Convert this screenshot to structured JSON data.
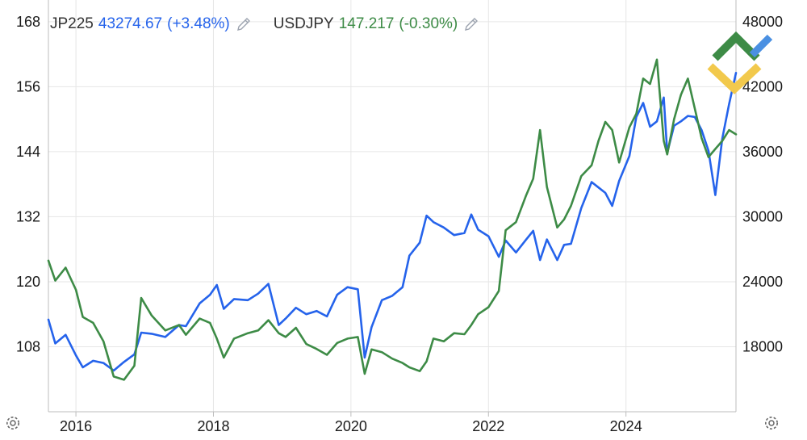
{
  "legend": [
    {
      "symbol": "JP225",
      "value": "43274.67",
      "change": "(+3.48%)",
      "color": "#2563eb",
      "icon": "pencil-icon"
    },
    {
      "symbol": "USDJPY",
      "value": "147.217",
      "change": "(-0.30%)",
      "color": "#3d8b46",
      "icon": "pencil-icon"
    }
  ],
  "icons": {
    "settings_left": "gear-icon",
    "settings_right": "gear-icon",
    "logo": "brand-logo"
  },
  "chart_data": {
    "type": "line",
    "x_ticks": [
      "2016",
      "2018",
      "2020",
      "2022",
      "2024"
    ],
    "y_left": {
      "ticks": [
        "108",
        "120",
        "132",
        "144",
        "156",
        "168"
      ],
      "range": [
        96,
        172
      ]
    },
    "y_right": {
      "ticks": [
        "18000",
        "24000",
        "30000",
        "36000",
        "42000",
        "48000"
      ],
      "range": [
        12000,
        50000
      ]
    },
    "x_range": [
      2015.6,
      2025.6
    ],
    "grid": true,
    "series": [
      {
        "name": "JP225",
        "axis": "right",
        "color": "#2563eb",
        "points": [
          [
            2015.6,
            20500
          ],
          [
            2015.7,
            18300
          ],
          [
            2015.85,
            19100
          ],
          [
            2016.0,
            17200
          ],
          [
            2016.1,
            16100
          ],
          [
            2016.25,
            16700
          ],
          [
            2016.4,
            16500
          ],
          [
            2016.55,
            15800
          ],
          [
            2016.7,
            16600
          ],
          [
            2016.85,
            17300
          ],
          [
            2016.95,
            19300
          ],
          [
            2017.1,
            19200
          ],
          [
            2017.3,
            18900
          ],
          [
            2017.5,
            20000
          ],
          [
            2017.6,
            19900
          ],
          [
            2017.8,
            22000
          ],
          [
            2017.95,
            22800
          ],
          [
            2018.05,
            23700
          ],
          [
            2018.15,
            21500
          ],
          [
            2018.3,
            22400
          ],
          [
            2018.5,
            22300
          ],
          [
            2018.65,
            22900
          ],
          [
            2018.8,
            23800
          ],
          [
            2018.95,
            20000
          ],
          [
            2019.05,
            20600
          ],
          [
            2019.2,
            21600
          ],
          [
            2019.35,
            21000
          ],
          [
            2019.5,
            21300
          ],
          [
            2019.65,
            20800
          ],
          [
            2019.8,
            22800
          ],
          [
            2019.95,
            23500
          ],
          [
            2020.1,
            23300
          ],
          [
            2020.2,
            17000
          ],
          [
            2020.3,
            19800
          ],
          [
            2020.45,
            22300
          ],
          [
            2020.6,
            22700
          ],
          [
            2020.75,
            23500
          ],
          [
            2020.85,
            26400
          ],
          [
            2021.0,
            27600
          ],
          [
            2021.1,
            30100
          ],
          [
            2021.2,
            29500
          ],
          [
            2021.35,
            29000
          ],
          [
            2021.5,
            28300
          ],
          [
            2021.65,
            28500
          ],
          [
            2021.75,
            30200
          ],
          [
            2021.85,
            28800
          ],
          [
            2022.0,
            28200
          ],
          [
            2022.15,
            26300
          ],
          [
            2022.25,
            27800
          ],
          [
            2022.4,
            26700
          ],
          [
            2022.55,
            27900
          ],
          [
            2022.65,
            28700
          ],
          [
            2022.75,
            26000
          ],
          [
            2022.85,
            27900
          ],
          [
            2023.0,
            26000
          ],
          [
            2023.1,
            27400
          ],
          [
            2023.2,
            27500
          ],
          [
            2023.35,
            30800
          ],
          [
            2023.5,
            33200
          ],
          [
            2023.6,
            32700
          ],
          [
            2023.7,
            32200
          ],
          [
            2023.8,
            31000
          ],
          [
            2023.9,
            33300
          ],
          [
            2024.05,
            35600
          ],
          [
            2024.15,
            39200
          ],
          [
            2024.25,
            40500
          ],
          [
            2024.35,
            38300
          ],
          [
            2024.45,
            38800
          ],
          [
            2024.55,
            41000
          ],
          [
            2024.6,
            35900
          ],
          [
            2024.7,
            38400
          ],
          [
            2024.8,
            38800
          ],
          [
            2024.9,
            39300
          ],
          [
            2025.0,
            39200
          ],
          [
            2025.1,
            38000
          ],
          [
            2025.2,
            36100
          ],
          [
            2025.3,
            32000
          ],
          [
            2025.4,
            37200
          ],
          [
            2025.5,
            40400
          ],
          [
            2025.6,
            43274
          ]
        ]
      },
      {
        "name": "USDJPY",
        "axis": "left",
        "color": "#3d8b46",
        "points": [
          [
            2015.6,
            123.9
          ],
          [
            2015.7,
            120.2
          ],
          [
            2015.85,
            122.6
          ],
          [
            2016.0,
            118.5
          ],
          [
            2016.1,
            113.5
          ],
          [
            2016.25,
            112.4
          ],
          [
            2016.4,
            109.0
          ],
          [
            2016.55,
            102.5
          ],
          [
            2016.7,
            101.9
          ],
          [
            2016.85,
            104.5
          ],
          [
            2016.95,
            117.0
          ],
          [
            2017.1,
            113.8
          ],
          [
            2017.3,
            111.0
          ],
          [
            2017.5,
            112.0
          ],
          [
            2017.6,
            110.2
          ],
          [
            2017.8,
            113.2
          ],
          [
            2017.95,
            112.4
          ],
          [
            2018.05,
            109.5
          ],
          [
            2018.15,
            106.0
          ],
          [
            2018.3,
            109.5
          ],
          [
            2018.5,
            110.5
          ],
          [
            2018.65,
            111.0
          ],
          [
            2018.8,
            112.9
          ],
          [
            2018.95,
            110.5
          ],
          [
            2019.05,
            109.8
          ],
          [
            2019.2,
            111.5
          ],
          [
            2019.35,
            108.5
          ],
          [
            2019.5,
            107.6
          ],
          [
            2019.65,
            106.5
          ],
          [
            2019.8,
            108.7
          ],
          [
            2019.95,
            109.5
          ],
          [
            2020.1,
            109.8
          ],
          [
            2020.2,
            103.0
          ],
          [
            2020.3,
            107.5
          ],
          [
            2020.45,
            107.0
          ],
          [
            2020.6,
            105.8
          ],
          [
            2020.75,
            105.0
          ],
          [
            2020.85,
            104.2
          ],
          [
            2021.0,
            103.5
          ],
          [
            2021.1,
            105.3
          ],
          [
            2021.2,
            109.5
          ],
          [
            2021.35,
            109.0
          ],
          [
            2021.5,
            110.5
          ],
          [
            2021.65,
            110.3
          ],
          [
            2021.75,
            112.0
          ],
          [
            2021.85,
            114.0
          ],
          [
            2022.0,
            115.3
          ],
          [
            2022.15,
            118.3
          ],
          [
            2022.25,
            129.5
          ],
          [
            2022.4,
            131.0
          ],
          [
            2022.55,
            136.0
          ],
          [
            2022.65,
            139.0
          ],
          [
            2022.75,
            148.0
          ],
          [
            2022.85,
            137.5
          ],
          [
            2023.0,
            130.0
          ],
          [
            2023.1,
            131.5
          ],
          [
            2023.2,
            134.0
          ],
          [
            2023.35,
            139.5
          ],
          [
            2023.5,
            141.5
          ],
          [
            2023.6,
            146.0
          ],
          [
            2023.7,
            149.5
          ],
          [
            2023.8,
            148.0
          ],
          [
            2023.9,
            142.0
          ],
          [
            2024.05,
            148.5
          ],
          [
            2024.15,
            151.0
          ],
          [
            2024.25,
            157.5
          ],
          [
            2024.35,
            156.5
          ],
          [
            2024.45,
            161.0
          ],
          [
            2024.55,
            146.0
          ],
          [
            2024.6,
            143.5
          ],
          [
            2024.7,
            150.0
          ],
          [
            2024.8,
            154.5
          ],
          [
            2024.9,
            157.5
          ],
          [
            2025.0,
            152.0
          ],
          [
            2025.1,
            146.5
          ],
          [
            2025.2,
            143.0
          ],
          [
            2025.3,
            144.5
          ],
          [
            2025.4,
            146.0
          ],
          [
            2025.5,
            148.0
          ],
          [
            2025.6,
            147.2
          ]
        ]
      }
    ]
  }
}
